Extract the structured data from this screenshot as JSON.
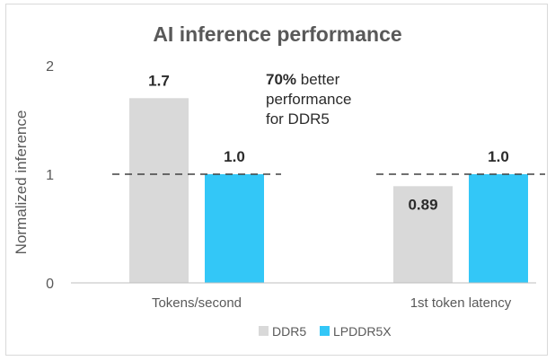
{
  "chart_data": {
    "type": "bar",
    "title": "AI inference performance",
    "xlabel": "",
    "ylabel": "Normalized inference",
    "ylim": [
      0,
      2
    ],
    "yticks": [
      "0",
      "1",
      "2"
    ],
    "categories": [
      "Tokens/second",
      "1st token latency"
    ],
    "series": [
      {
        "name": "DDR5",
        "values": [
          1.7,
          0.89
        ],
        "labels": [
          "1.7",
          "0.89"
        ]
      },
      {
        "name": "LPDDR5X",
        "values": [
          1.0,
          1.0
        ],
        "labels": [
          "1.0",
          "1.0"
        ]
      }
    ],
    "reference_line": {
      "value": 1,
      "style": "dashed"
    },
    "legend_position": "bottom",
    "grid": false,
    "annotation": {
      "bold": "70%",
      "line1_rest": " better",
      "line2": "performance",
      "line3": "for DDR5"
    }
  },
  "colors": {
    "DDR5": "#d9d9d9",
    "LPDDR5X": "#33c7f7",
    "text_dark": "#2b2b2b",
    "text_mid": "#595959",
    "axis": "#bfbfbf",
    "reference_line": "#404040"
  }
}
